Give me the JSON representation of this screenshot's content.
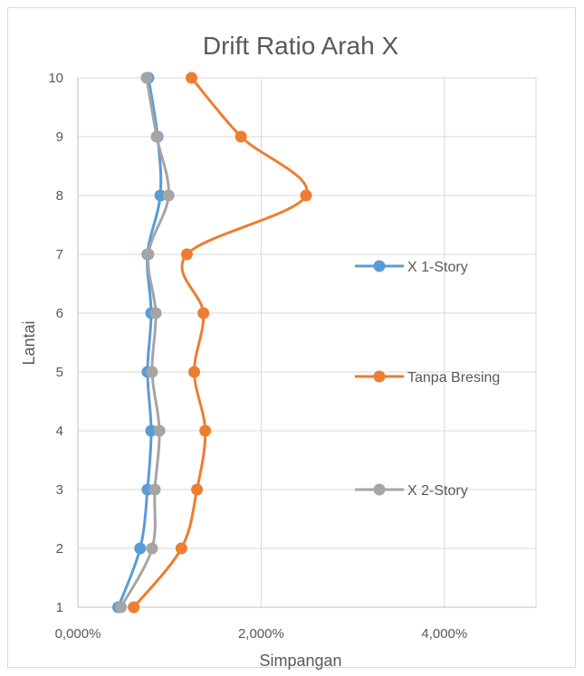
{
  "chart_data": {
    "type": "line",
    "title": "Drift Ratio Arah X",
    "xlabel": "Simpangan",
    "ylabel": "Lantai",
    "xlim": [
      0,
      5
    ],
    "ylim": [
      1,
      10
    ],
    "x_ticks": [
      {
        "value": 0,
        "label": "0,000%"
      },
      {
        "value": 2,
        "label": "2,000%"
      },
      {
        "value": 4,
        "label": "4,000%"
      }
    ],
    "y_ticks": [
      {
        "value": 1,
        "label": "1"
      },
      {
        "value": 2,
        "label": "2"
      },
      {
        "value": 3,
        "label": "3"
      },
      {
        "value": 4,
        "label": "4"
      },
      {
        "value": 5,
        "label": "5"
      },
      {
        "value": 6,
        "label": "6"
      },
      {
        "value": 7,
        "label": "7"
      },
      {
        "value": 8,
        "label": "8"
      },
      {
        "value": 9,
        "label": "9"
      },
      {
        "value": 10,
        "label": "10"
      }
    ],
    "grid": true,
    "legend_position": "right",
    "series": [
      {
        "name": "X 1-Story",
        "color": "#5B9BD5",
        "points": [
          {
            "x": 0.44,
            "y": 1
          },
          {
            "x": 0.68,
            "y": 2
          },
          {
            "x": 0.76,
            "y": 3
          },
          {
            "x": 0.8,
            "y": 4
          },
          {
            "x": 0.76,
            "y": 5
          },
          {
            "x": 0.8,
            "y": 6
          },
          {
            "x": 0.76,
            "y": 7
          },
          {
            "x": 0.9,
            "y": 8
          },
          {
            "x": 0.87,
            "y": 9
          },
          {
            "x": 0.77,
            "y": 10
          }
        ]
      },
      {
        "name": "Tanpa Bresing",
        "color": "#ED7D31",
        "points": [
          {
            "x": 0.61,
            "y": 1
          },
          {
            "x": 1.13,
            "y": 2
          },
          {
            "x": 1.3,
            "y": 3
          },
          {
            "x": 1.39,
            "y": 4
          },
          {
            "x": 1.27,
            "y": 5
          },
          {
            "x": 1.37,
            "y": 6
          },
          {
            "x": 1.19,
            "y": 7
          },
          {
            "x": 2.49,
            "y": 8
          },
          {
            "x": 1.78,
            "y": 9
          },
          {
            "x": 1.24,
            "y": 10
          }
        ]
      },
      {
        "name": "X 2-Story",
        "color": "#A5A5A5",
        "points": [
          {
            "x": 0.47,
            "y": 1
          },
          {
            "x": 0.81,
            "y": 2
          },
          {
            "x": 0.84,
            "y": 3
          },
          {
            "x": 0.89,
            "y": 4
          },
          {
            "x": 0.81,
            "y": 5
          },
          {
            "x": 0.85,
            "y": 6
          },
          {
            "x": 0.77,
            "y": 7
          },
          {
            "x": 0.99,
            "y": 8
          },
          {
            "x": 0.86,
            "y": 9
          },
          {
            "x": 0.75,
            "y": 10
          }
        ]
      }
    ]
  }
}
